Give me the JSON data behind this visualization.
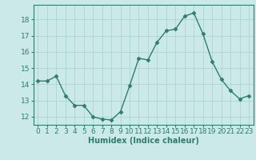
{
  "x": [
    0,
    1,
    2,
    3,
    4,
    5,
    6,
    7,
    8,
    9,
    10,
    11,
    12,
    13,
    14,
    15,
    16,
    17,
    18,
    19,
    20,
    21,
    22,
    23
  ],
  "y": [
    14.2,
    14.2,
    14.5,
    13.3,
    12.7,
    12.7,
    12.0,
    11.85,
    11.8,
    12.3,
    13.9,
    15.6,
    15.5,
    16.6,
    17.3,
    17.4,
    18.2,
    18.4,
    17.1,
    15.4,
    14.3,
    13.6,
    13.1,
    13.3
  ],
  "line_color": "#2e7d6e",
  "marker": "D",
  "marker_size": 2.5,
  "bg_color": "#cce9e9",
  "grid_color": "#aed4d4",
  "xlabel": "Humidex (Indice chaleur)",
  "ylim": [
    11.5,
    18.9
  ],
  "xlim": [
    -0.5,
    23.5
  ],
  "yticks": [
    12,
    13,
    14,
    15,
    16,
    17,
    18
  ],
  "xticks": [
    0,
    1,
    2,
    3,
    4,
    5,
    6,
    7,
    8,
    9,
    10,
    11,
    12,
    13,
    14,
    15,
    16,
    17,
    18,
    19,
    20,
    21,
    22,
    23
  ],
  "label_fontsize": 7,
  "tick_fontsize": 6.5
}
